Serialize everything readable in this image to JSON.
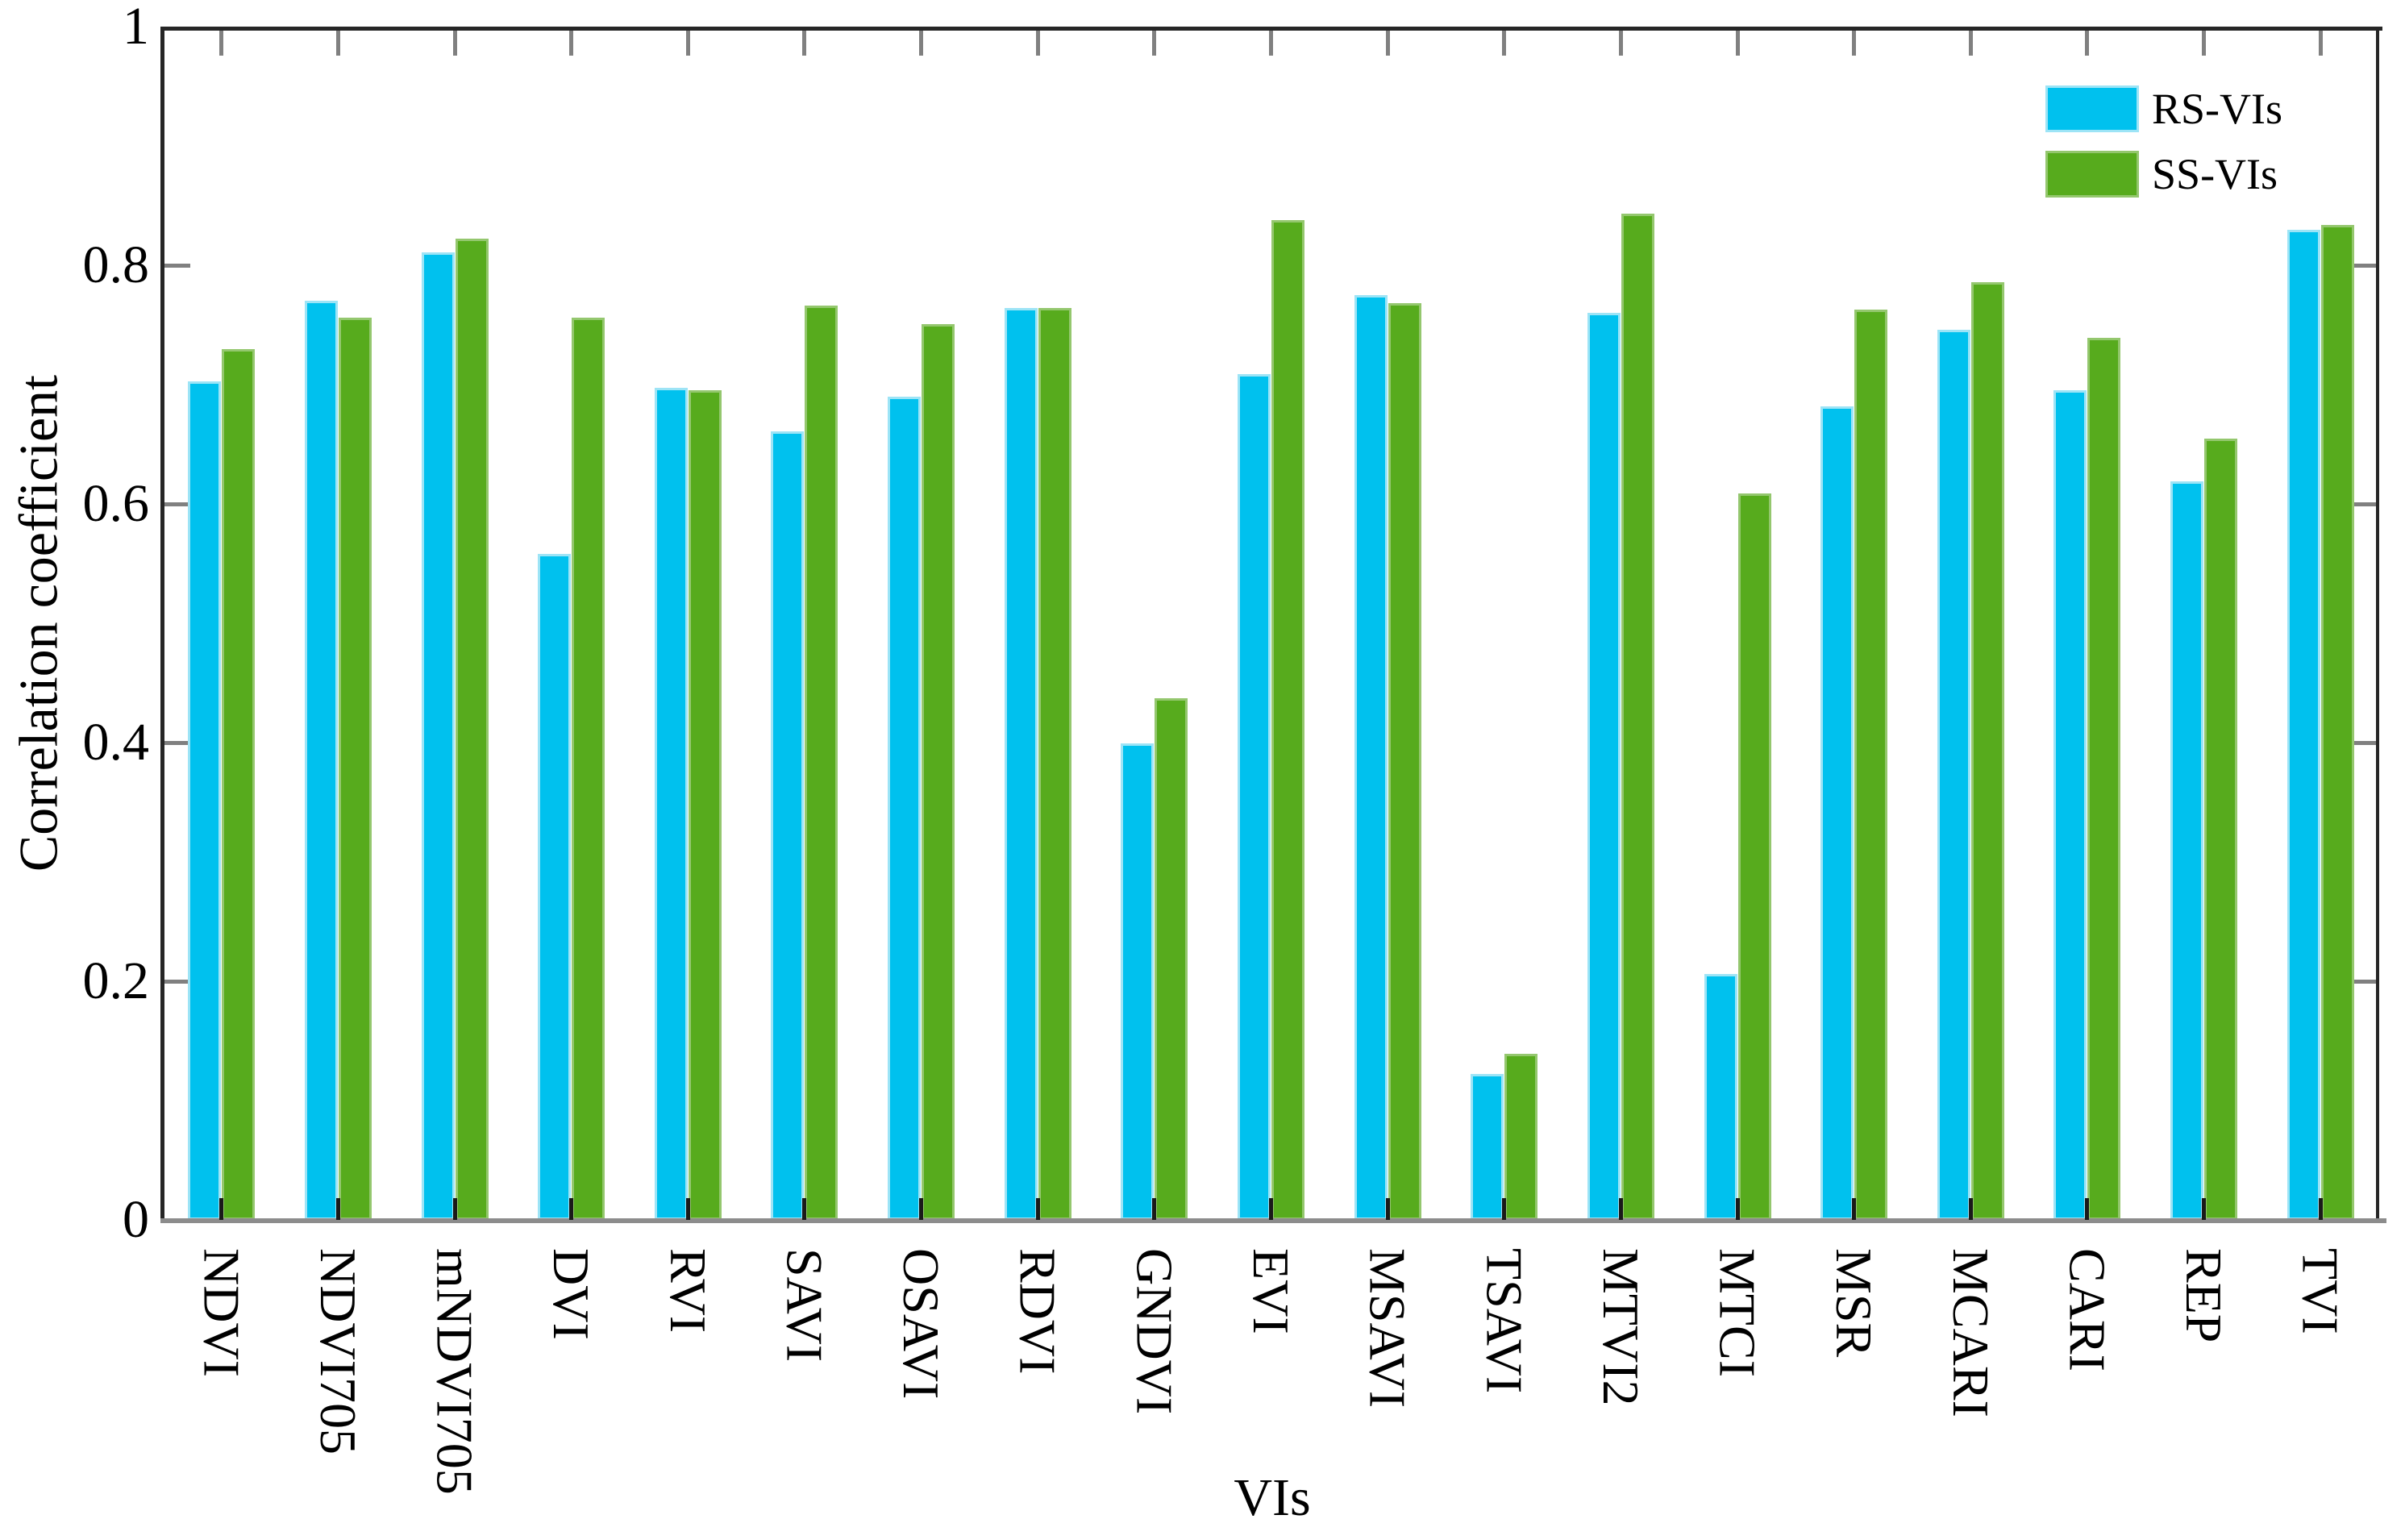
{
  "chart_data": {
    "type": "bar",
    "title": "",
    "xlabel": "VIs",
    "ylabel": "Correlation coefficient",
    "ylim": [
      0,
      1
    ],
    "yticks": [
      {
        "label": "1",
        "value": 1.0
      },
      {
        "label": "0.8",
        "value": 0.8
      },
      {
        "label": "0.6",
        "value": 0.6
      },
      {
        "label": "0.4",
        "value": 0.4
      },
      {
        "label": "0.2",
        "value": 0.2
      },
      {
        "label": "0",
        "value": 0.0
      }
    ],
    "categories": [
      "NDVI",
      "NDVI705",
      "mNDVI705",
      "DVI",
      "RVI",
      "SAVI",
      "OSAVI",
      "RDVI",
      "GNDVI",
      "EVI",
      "MSAVI",
      "TSAVI",
      "MTVI2",
      "MTCI",
      "MSR",
      "MCARI",
      "CARI",
      "REP",
      "TVI"
    ],
    "series": [
      {
        "name": "RS-VIs",
        "color": "#00c1ee",
        "edge_color": "#9de4f6",
        "values": [
          0.703,
          0.77,
          0.811,
          0.558,
          0.697,
          0.661,
          0.69,
          0.764,
          0.399,
          0.709,
          0.775,
          0.122,
          0.76,
          0.206,
          0.682,
          0.746,
          0.695,
          0.619,
          0.83
        ]
      },
      {
        "name": "SS-VIs",
        "color": "#57ab1d",
        "edge_color": "#94c76e",
        "values": [
          0.73,
          0.756,
          0.822,
          0.756,
          0.695,
          0.766,
          0.751,
          0.764,
          0.437,
          0.838,
          0.768,
          0.139,
          0.843,
          0.609,
          0.763,
          0.786,
          0.739,
          0.655,
          0.834
        ]
      }
    ],
    "legend": {
      "position": "top-right",
      "entries": [
        "RS-VIs",
        "SS-VIs"
      ]
    },
    "grid": false
  }
}
